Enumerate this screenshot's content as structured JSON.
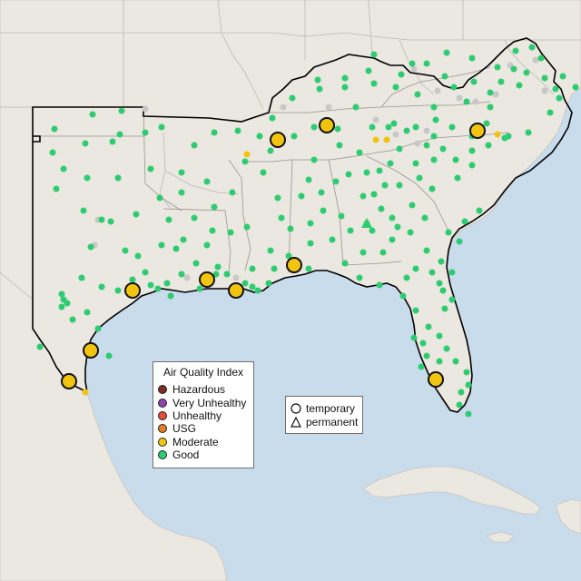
{
  "legend": {
    "title": "Air Quality Index",
    "categories": [
      {
        "label": "Hazardous",
        "color": "#7b2d26"
      },
      {
        "label": "Very Unhealthy",
        "color": "#8e44ad"
      },
      {
        "label": "Unhealthy",
        "color": "#e74c3c"
      },
      {
        "label": "USG",
        "color": "#e67e22"
      },
      {
        "label": "Moderate",
        "color": "#f1c40f"
      },
      {
        "label": "Good",
        "color": "#2ecc71"
      }
    ]
  },
  "monitor_types": [
    {
      "label": "temporary",
      "icon": "circle-icon"
    },
    {
      "label": "permanent",
      "icon": "triangle-icon"
    }
  ],
  "colors": {
    "ocean": "#c8dcec",
    "land": "#ebe7e1",
    "region_outline": "#000000",
    "good": "#2ecc71",
    "moderate": "#f1c40f",
    "no_data": "#c8c8c8"
  }
}
